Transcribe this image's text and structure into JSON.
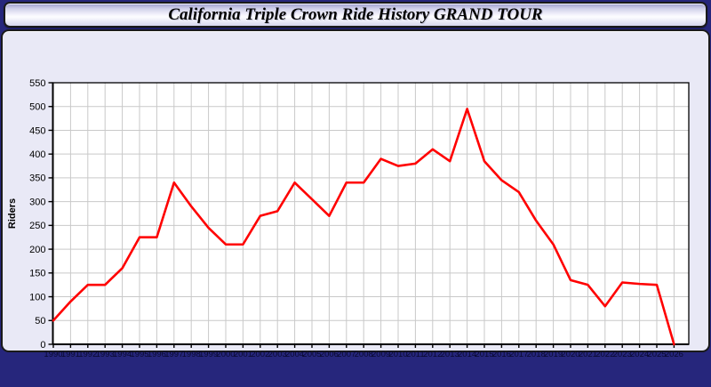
{
  "header": {
    "title": "California Triple Crown Ride History GRAND TOUR"
  },
  "colors": {
    "line": "#ff0000",
    "panel_bg": "#e9e9f6",
    "plot_bg": "#ffffff",
    "grid": "#c9c9c9",
    "axis": "#000000",
    "page_edge": "#26267c"
  },
  "chart_data": {
    "type": "line",
    "title": "California Triple Crown Ride History GRAND TOUR",
    "xlabel": "",
    "ylabel": "Riders",
    "legend_position": "none",
    "grid": true,
    "ylim": [
      0,
      550
    ],
    "ytick_step": 50,
    "x": [
      1990,
      1991,
      1992,
      1993,
      1994,
      1995,
      1996,
      1997,
      1998,
      1999,
      2000,
      2001,
      2002,
      2003,
      2004,
      2005,
      2006,
      2007,
      2008,
      2009,
      2010,
      2011,
      2012,
      2013,
      2014,
      2015,
      2016,
      2017,
      2018,
      2019,
      2020,
      2021,
      2022,
      2023,
      2024,
      2025,
      2026
    ],
    "series": [
      {
        "name": "Riders",
        "color": "#ff0000",
        "values": [
          50,
          90,
          125,
          125,
          160,
          225,
          225,
          340,
          290,
          245,
          210,
          210,
          270,
          280,
          340,
          305,
          270,
          340,
          340,
          390,
          375,
          380,
          410,
          385,
          495,
          385,
          345,
          320,
          260,
          210,
          135,
          125,
          80,
          130,
          127,
          125,
          0
        ]
      }
    ]
  }
}
